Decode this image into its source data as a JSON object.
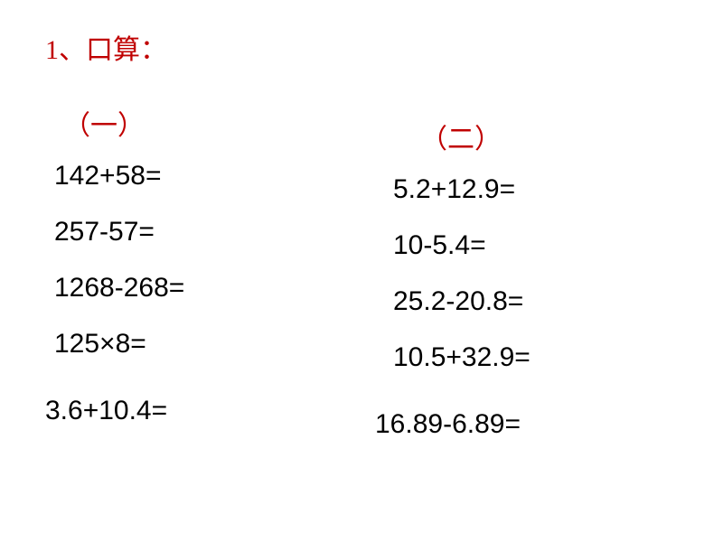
{
  "title": "1、口算：",
  "title_color": "#c00000",
  "title_fontsize": 30,
  "text_color": "#000000",
  "background_color": "#ffffff",
  "problem_fontsize": 30,
  "section_one": {
    "label": "（一）",
    "problems": [
      "142+58=",
      "257-57=",
      "1268-268=",
      "125×8="
    ],
    "last_problem": "3.6+10.4="
  },
  "section_two": {
    "label": "（二）",
    "problems": [
      "5.2+12.9=",
      "10-5.4=",
      "25.2-20.8=",
      "10.5+32.9="
    ],
    "last_problem": "16.89-6.89="
  }
}
